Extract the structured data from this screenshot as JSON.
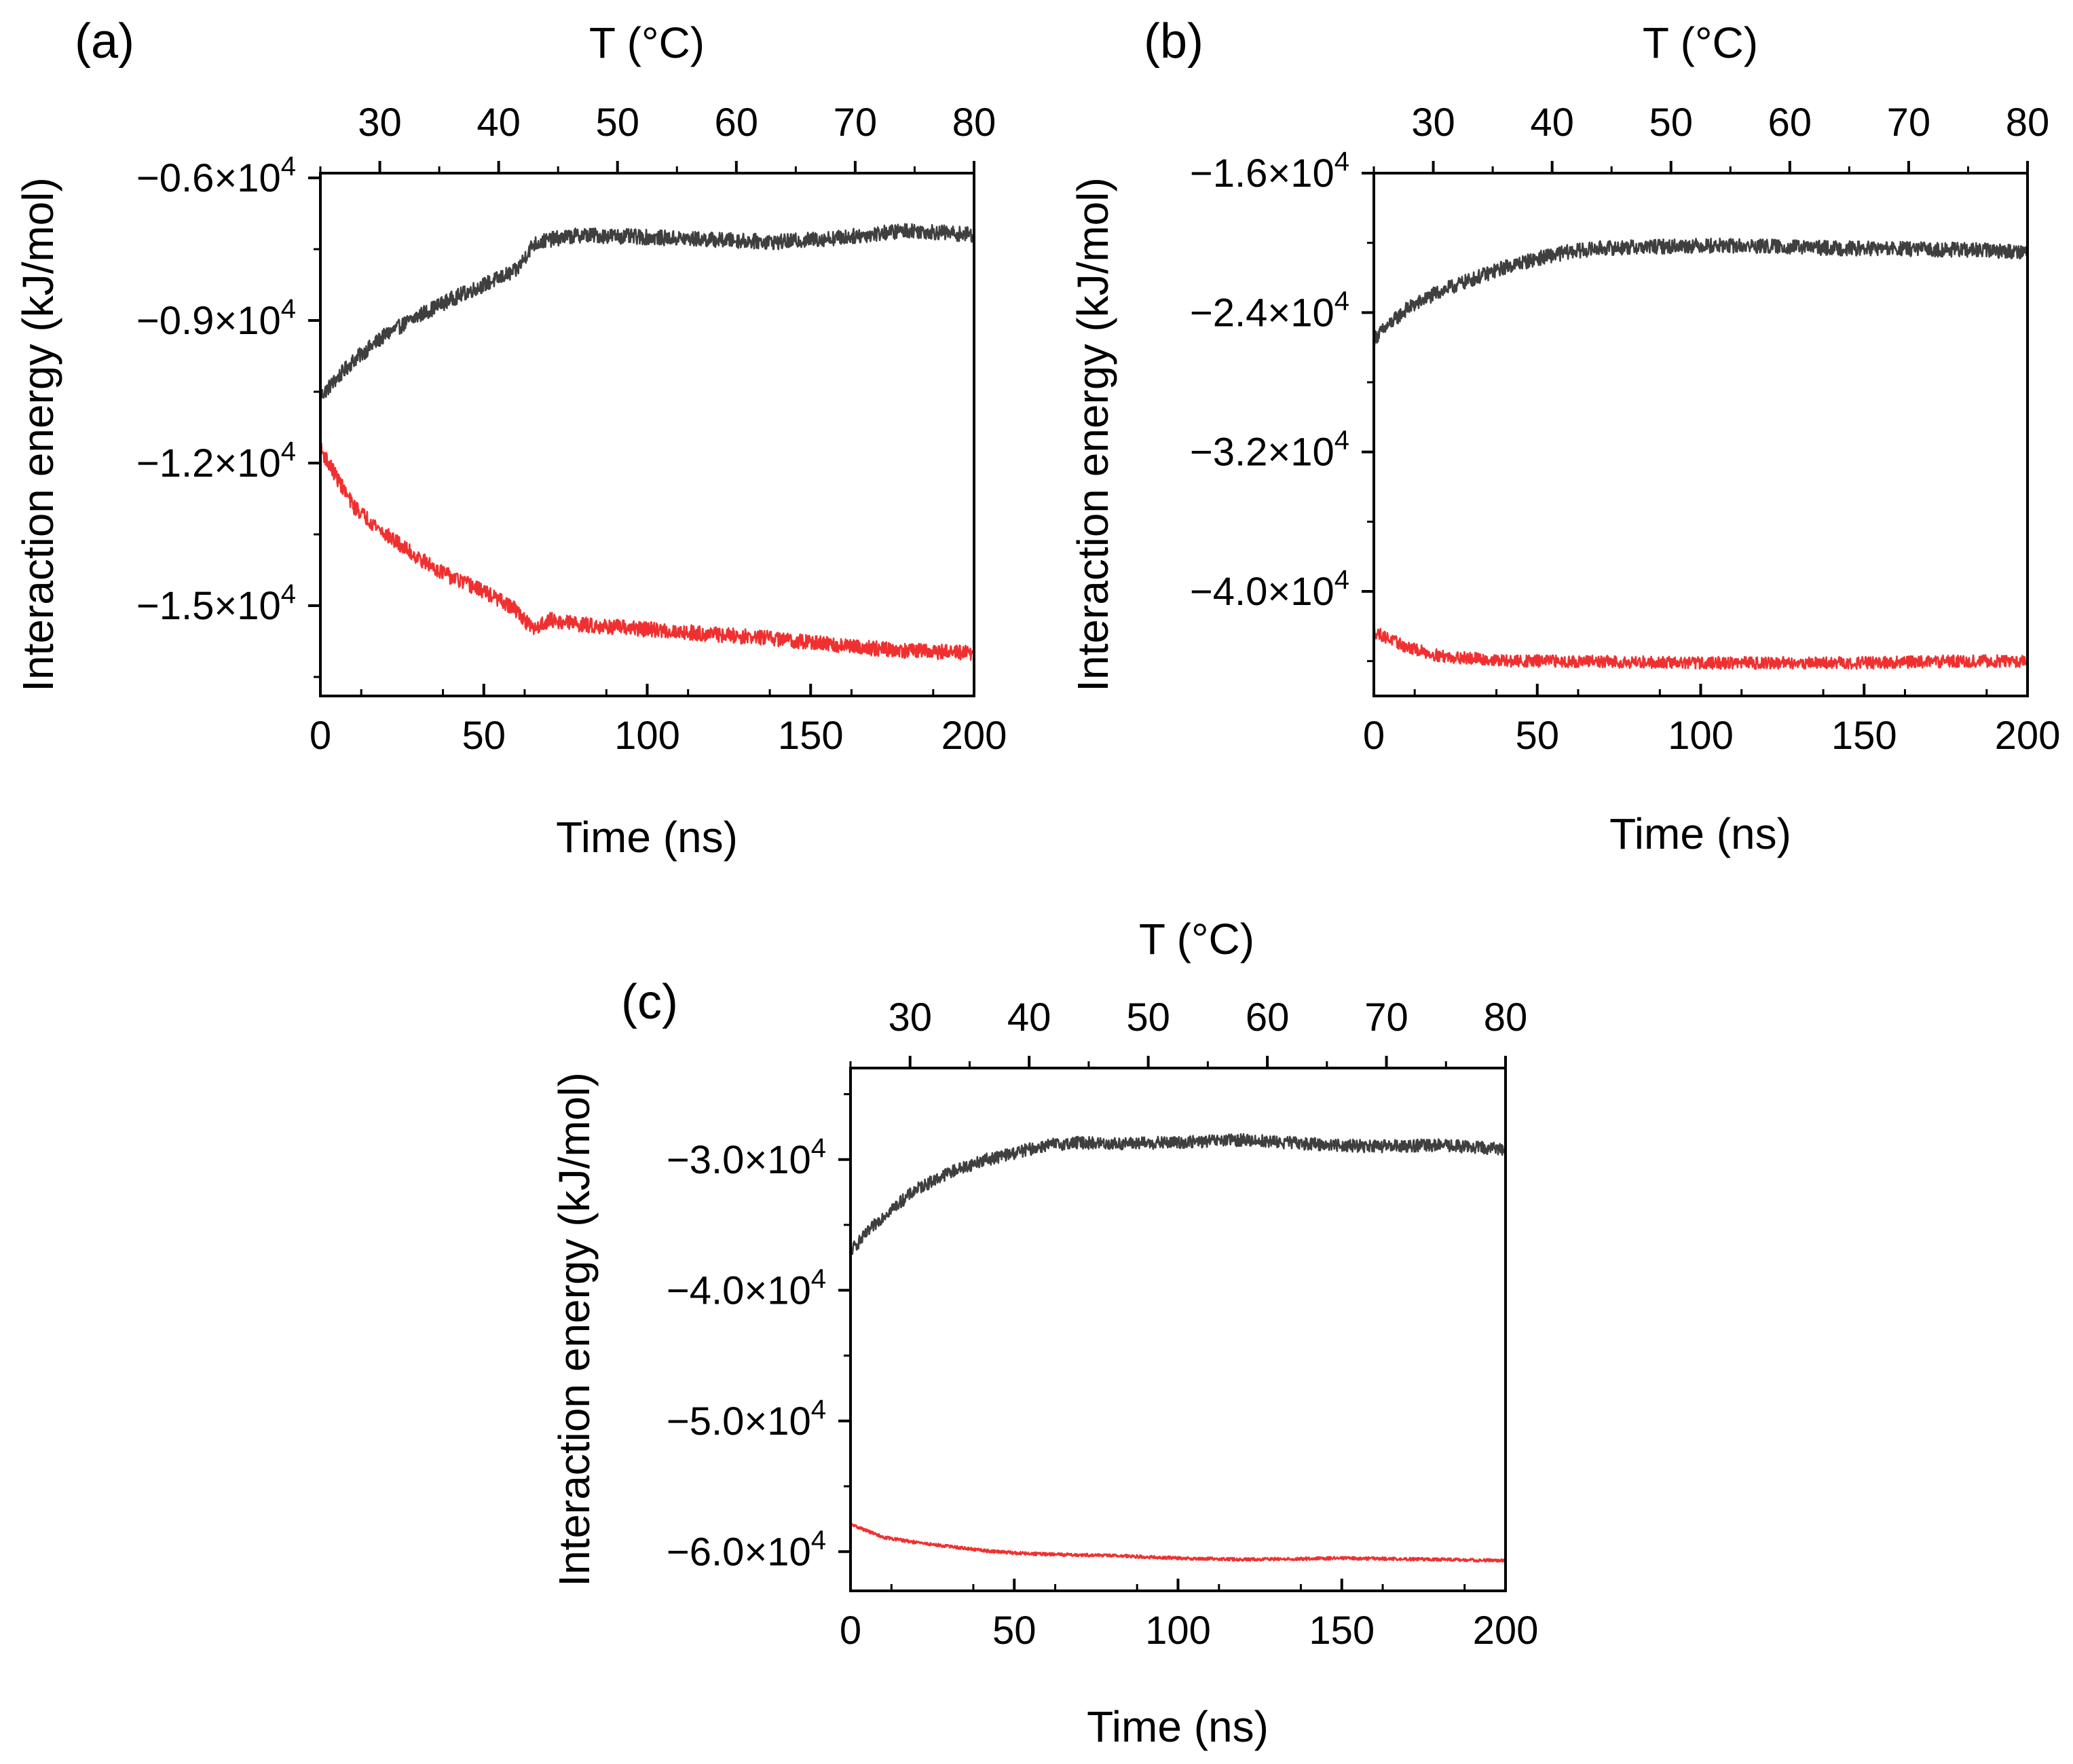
{
  "chart_data": [
    {
      "type": "line",
      "panel_label": "(a)",
      "xlabel": "Time (ns)",
      "ylabel": "Interaction energy (kJ/mol)",
      "top_xlabel": "T (°C)",
      "xlim": [
        0,
        200
      ],
      "ylim": [
        -16900,
        -5900
      ],
      "x_ticks": [
        0,
        50,
        100,
        150,
        200
      ],
      "x_tick_labels": [
        "0",
        "50",
        "100",
        "150",
        "200"
      ],
      "y_ticks": [
        -6000,
        -9000,
        -12000,
        -15000
      ],
      "y_tick_labels": [
        {
          "mantissa": "−0.6×10",
          "exp": "4"
        },
        {
          "mantissa": "−0.9×10",
          "exp": "4"
        },
        {
          "mantissa": "−1.2×10",
          "exp": "4"
        },
        {
          "mantissa": "−1.5×10",
          "exp": "4"
        }
      ],
      "top_ticks": [
        30,
        40,
        50,
        60,
        70,
        80
      ],
      "top_tick_labels": [
        "30",
        "40",
        "50",
        "60",
        "70",
        "80"
      ],
      "top_range": [
        25,
        80
      ],
      "series": [
        {
          "name": "upper (gray)",
          "color": "#3f3f3f",
          "noise": 160,
          "x": [
            0,
            10,
            20,
            30,
            40,
            50,
            60,
            65,
            70,
            80,
            100,
            120,
            140,
            160,
            180,
            200
          ],
          "y": [
            -10600,
            -9850,
            -9300,
            -8900,
            -8550,
            -8250,
            -7950,
            -7400,
            -7300,
            -7200,
            -7250,
            -7300,
            -7350,
            -7250,
            -7100,
            -7200
          ]
        },
        {
          "name": "lower (red)",
          "color": "#f03030",
          "noise": 160,
          "x": [
            0,
            10,
            20,
            30,
            40,
            50,
            60,
            65,
            70,
            80,
            100,
            120,
            140,
            160,
            180,
            200
          ],
          "y": [
            -11700,
            -12900,
            -13500,
            -14000,
            -14400,
            -14700,
            -15100,
            -15500,
            -15300,
            -15400,
            -15500,
            -15600,
            -15700,
            -15850,
            -15950,
            -16000
          ]
        }
      ]
    },
    {
      "type": "line",
      "panel_label": "(b)",
      "xlabel": "Time (ns)",
      "ylabel": "Interaction energy (kJ/mol)",
      "top_xlabel": "T (°C)",
      "xlim": [
        0,
        200
      ],
      "ylim": [
        -46000,
        -16000
      ],
      "x_ticks": [
        0,
        50,
        100,
        150,
        200
      ],
      "x_tick_labels": [
        "0",
        "50",
        "100",
        "150",
        "200"
      ],
      "y_ticks": [
        -16000,
        -24000,
        -32000,
        -40000
      ],
      "y_tick_labels": [
        {
          "mantissa": "−1.6×10",
          "exp": "4"
        },
        {
          "mantissa": "−2.4×10",
          "exp": "4"
        },
        {
          "mantissa": "−3.2×10",
          "exp": "4"
        },
        {
          "mantissa": "−4.0×10",
          "exp": "4"
        }
      ],
      "top_ticks": [
        30,
        40,
        50,
        60,
        70,
        80
      ],
      "top_tick_labels": [
        "30",
        "40",
        "50",
        "60",
        "70",
        "80"
      ],
      "top_range": [
        25,
        80
      ],
      "series": [
        {
          "name": "upper (gray)",
          "color": "#3f3f3f",
          "noise": 420,
          "x": [
            0,
            10,
            20,
            30,
            40,
            50,
            60,
            70,
            80,
            100,
            120,
            140,
            160,
            180,
            200
          ],
          "y": [
            -25500,
            -23800,
            -22800,
            -22100,
            -21400,
            -20900,
            -20500,
            -20300,
            -20250,
            -20150,
            -20200,
            -20300,
            -20350,
            -20400,
            -20500
          ]
        },
        {
          "name": "lower (red)",
          "color": "#f03030",
          "noise": 350,
          "x": [
            0,
            10,
            20,
            30,
            40,
            50,
            80,
            100,
            120,
            150,
            180,
            200
          ],
          "y": [
            -42300,
            -43200,
            -43700,
            -43850,
            -44000,
            -44000,
            -44050,
            -44100,
            -44100,
            -44100,
            -44000,
            -44000
          ]
        }
      ]
    },
    {
      "type": "line",
      "panel_label": "(c)",
      "xlabel": "Time (ns)",
      "ylabel": "Interaction energy (kJ/mol)",
      "top_xlabel": "T (°C)",
      "xlim": [
        0,
        200
      ],
      "ylim": [
        -63000,
        -23000
      ],
      "x_ticks": [
        0,
        50,
        100,
        150,
        200
      ],
      "x_tick_labels": [
        "0",
        "50",
        "100",
        "150",
        "200"
      ],
      "y_ticks": [
        -30000,
        -40000,
        -50000,
        -60000
      ],
      "y_tick_labels": [
        {
          "mantissa": "−3.0×10",
          "exp": "4"
        },
        {
          "mantissa": "−4.0×10",
          "exp": "4"
        },
        {
          "mantissa": "−5.0×10",
          "exp": "4"
        },
        {
          "mantissa": "−6.0×10",
          "exp": "4"
        }
      ],
      "top_ticks": [
        30,
        40,
        50,
        60,
        70,
        80
      ],
      "top_tick_labels": [
        "30",
        "40",
        "50",
        "60",
        "70",
        "80"
      ],
      "top_range": [
        25,
        80
      ],
      "series": [
        {
          "name": "upper (gray)",
          "color": "#3f3f3f",
          "noise": 480,
          "x": [
            0,
            10,
            20,
            30,
            40,
            50,
            60,
            70,
            80,
            100,
            120,
            140,
            160,
            180,
            200
          ],
          "y": [
            -37000,
            -34300,
            -32300,
            -31000,
            -30100,
            -29500,
            -28900,
            -28700,
            -28800,
            -28700,
            -28500,
            -28800,
            -29000,
            -28900,
            -29200
          ]
        },
        {
          "name": "lower (red)",
          "color": "#f03030",
          "noise": 120,
          "x": [
            0,
            10,
            20,
            30,
            40,
            50,
            60,
            80,
            100,
            120,
            150,
            180,
            200
          ],
          "y": [
            -57900,
            -58900,
            -59300,
            -59600,
            -59900,
            -60100,
            -60200,
            -60300,
            -60500,
            -60600,
            -60500,
            -60600,
            -60700
          ]
        }
      ]
    }
  ]
}
